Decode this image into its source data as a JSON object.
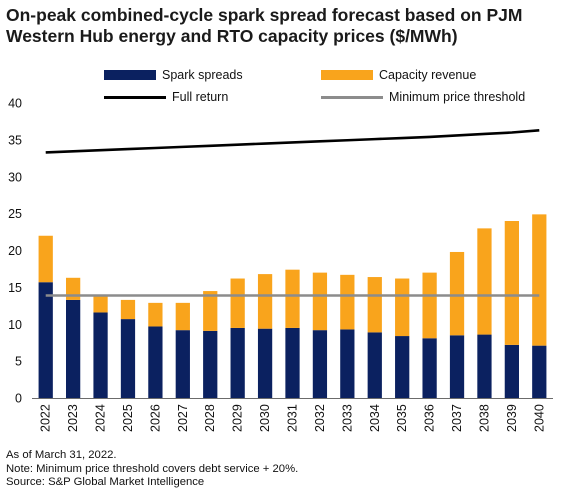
{
  "chart_data": {
    "type": "bar",
    "title": "On-peak combined-cycle spark spread forecast based on PJM Western Hub energy and RTO capacity prices ($/MWh)",
    "categories": [
      "2022",
      "2023",
      "2024",
      "2025",
      "2026",
      "2027",
      "2028",
      "2029",
      "2030",
      "2031",
      "2032",
      "2033",
      "2034",
      "2035",
      "2036",
      "2037",
      "2038",
      "2039",
      "2040"
    ],
    "series": [
      {
        "name": "Spark spreads",
        "kind": "stacked-bar",
        "color": "#0b2160",
        "values": [
          15.7,
          13.3,
          11.6,
          10.7,
          9.7,
          9.2,
          9.1,
          9.5,
          9.4,
          9.5,
          9.2,
          9.3,
          8.9,
          8.4,
          8.1,
          8.5,
          8.6,
          7.2,
          7.1
        ]
      },
      {
        "name": "Capacity revenue",
        "kind": "stacked-bar",
        "color": "#f9a41c",
        "values": [
          6.3,
          3.0,
          2.3,
          2.6,
          3.2,
          3.7,
          5.4,
          6.7,
          7.4,
          7.9,
          7.8,
          7.4,
          7.5,
          7.8,
          8.9,
          11.3,
          14.4,
          16.8,
          17.8
        ]
      },
      {
        "name": "Full return",
        "kind": "line",
        "color": "#000000",
        "values": [
          33.3,
          33.45,
          33.6,
          33.75,
          33.9,
          34.05,
          34.2,
          34.35,
          34.5,
          34.65,
          34.8,
          34.95,
          35.1,
          35.25,
          35.4,
          35.6,
          35.8,
          36.0,
          36.3
        ]
      },
      {
        "name": "Minimum price threshold",
        "kind": "line",
        "color": "#8c8c8c",
        "values": [
          13.9,
          13.9,
          13.9,
          13.9,
          13.9,
          13.9,
          13.9,
          13.9,
          13.9,
          13.9,
          13.9,
          13.9,
          13.9,
          13.9,
          13.9,
          13.9,
          13.9,
          13.9,
          13.9
        ]
      }
    ],
    "ylim": [
      0,
      40
    ],
    "yticks": [
      "0",
      "5",
      "10",
      "15",
      "20",
      "25",
      "30",
      "35",
      "40"
    ],
    "grid": false,
    "legend_position": "top"
  },
  "notes": [
    "As of March 31, 2022.",
    "Note: Minimum price threshold covers debt service + 20%.",
    "Source: S&P Global Market Intelligence"
  ]
}
